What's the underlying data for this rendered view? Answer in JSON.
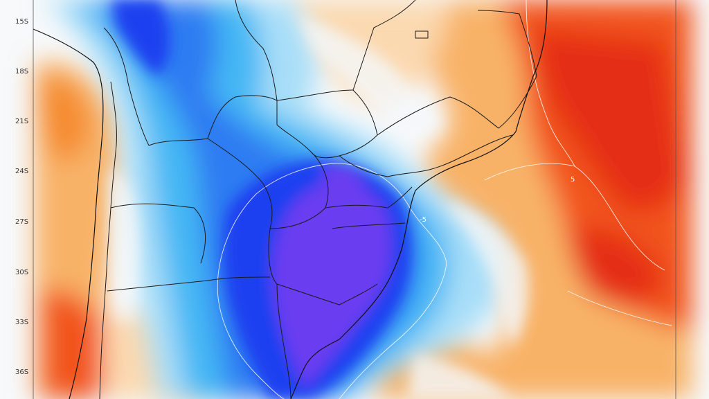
{
  "map": {
    "latitude_labels": [
      "15S",
      "18S",
      "21S",
      "24S",
      "27S",
      "30S",
      "33S",
      "36S"
    ],
    "contour_labels": {
      "negative": "-5",
      "positive": "5"
    },
    "colors": {
      "deep_purple": "#6a3cf0",
      "strong_blue": "#1f3ff0",
      "mid_blue": "#2f7bf2",
      "light_blue": "#44b7f4",
      "pale_blue": "#a9def8",
      "near_white": "#f4f8fb",
      "pale_orange": "#fbd9b0",
      "light_orange": "#f8b267",
      "orange": "#f58b2e",
      "red_orange": "#f2541e",
      "red": "#e52d16",
      "border_line": "#1a1a1a"
    }
  }
}
